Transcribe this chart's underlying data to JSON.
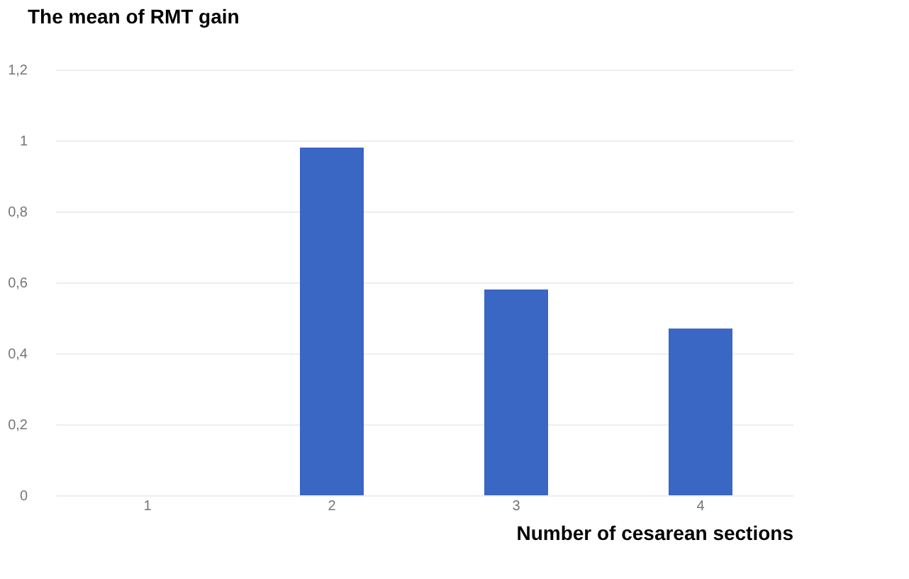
{
  "chart_data": {
    "type": "bar",
    "categories": [
      "1",
      "2",
      "3",
      "4"
    ],
    "values": [
      0,
      0.98,
      0.58,
      0.47
    ],
    "color": "#3a66c4",
    "xlabel": "Number of cesarean sections",
    "ylabel": "The mean of RMT gain",
    "ylim": [
      0,
      1.2
    ],
    "yticks": [
      0,
      {
        "value": 0.2,
        "label": "0,2"
      },
      {
        "value": 0.4,
        "label": "0,4"
      },
      {
        "value": 0.6,
        "label": "0,6"
      },
      {
        "value": 0.8,
        "label": "0,8"
      },
      1,
      {
        "value": 1.2,
        "label": "1,2"
      }
    ],
    "grid": "y"
  }
}
